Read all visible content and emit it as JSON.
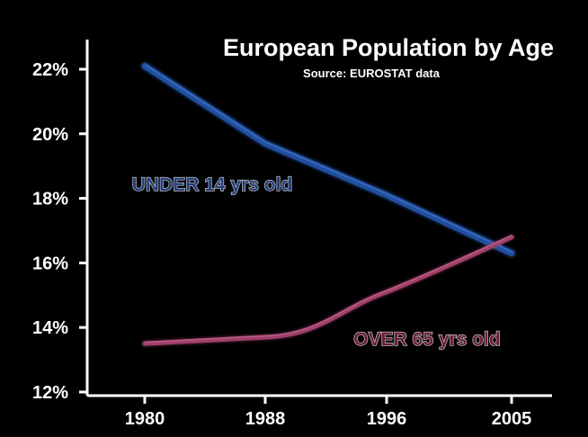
{
  "chart_data": {
    "type": "line",
    "title": "European Population by Age",
    "subtitle": "Source: EUROSTAT data",
    "categories": [
      "1980",
      "1988",
      "1996",
      "2005"
    ],
    "x_tick_labels": [
      "1980",
      "1988",
      "1996",
      "2005"
    ],
    "y_tick_labels": [
      "22%",
      "20%",
      "18%",
      "16%",
      "14%",
      "12%"
    ],
    "y_tick_values": [
      22,
      20,
      18,
      16,
      14,
      12
    ],
    "ylim": [
      12,
      22.8
    ],
    "xlabel": "",
    "ylabel": "",
    "grid": false,
    "legend": "none",
    "series": [
      {
        "name": "UNDER 14 yrs old",
        "values": [
          22.1,
          19.7,
          18.1,
          16.3
        ],
        "color": "#1f4f9e",
        "label_color": "#243f7a"
      },
      {
        "name": "OVER 65 yrs old",
        "values": [
          13.5,
          13.7,
          15.1,
          16.8
        ],
        "color": "#a0406a",
        "label_color": "#6a1f3a"
      }
    ]
  },
  "colors": {
    "background": "#000000",
    "axis": "#ffffff",
    "text": "#ffffff"
  }
}
